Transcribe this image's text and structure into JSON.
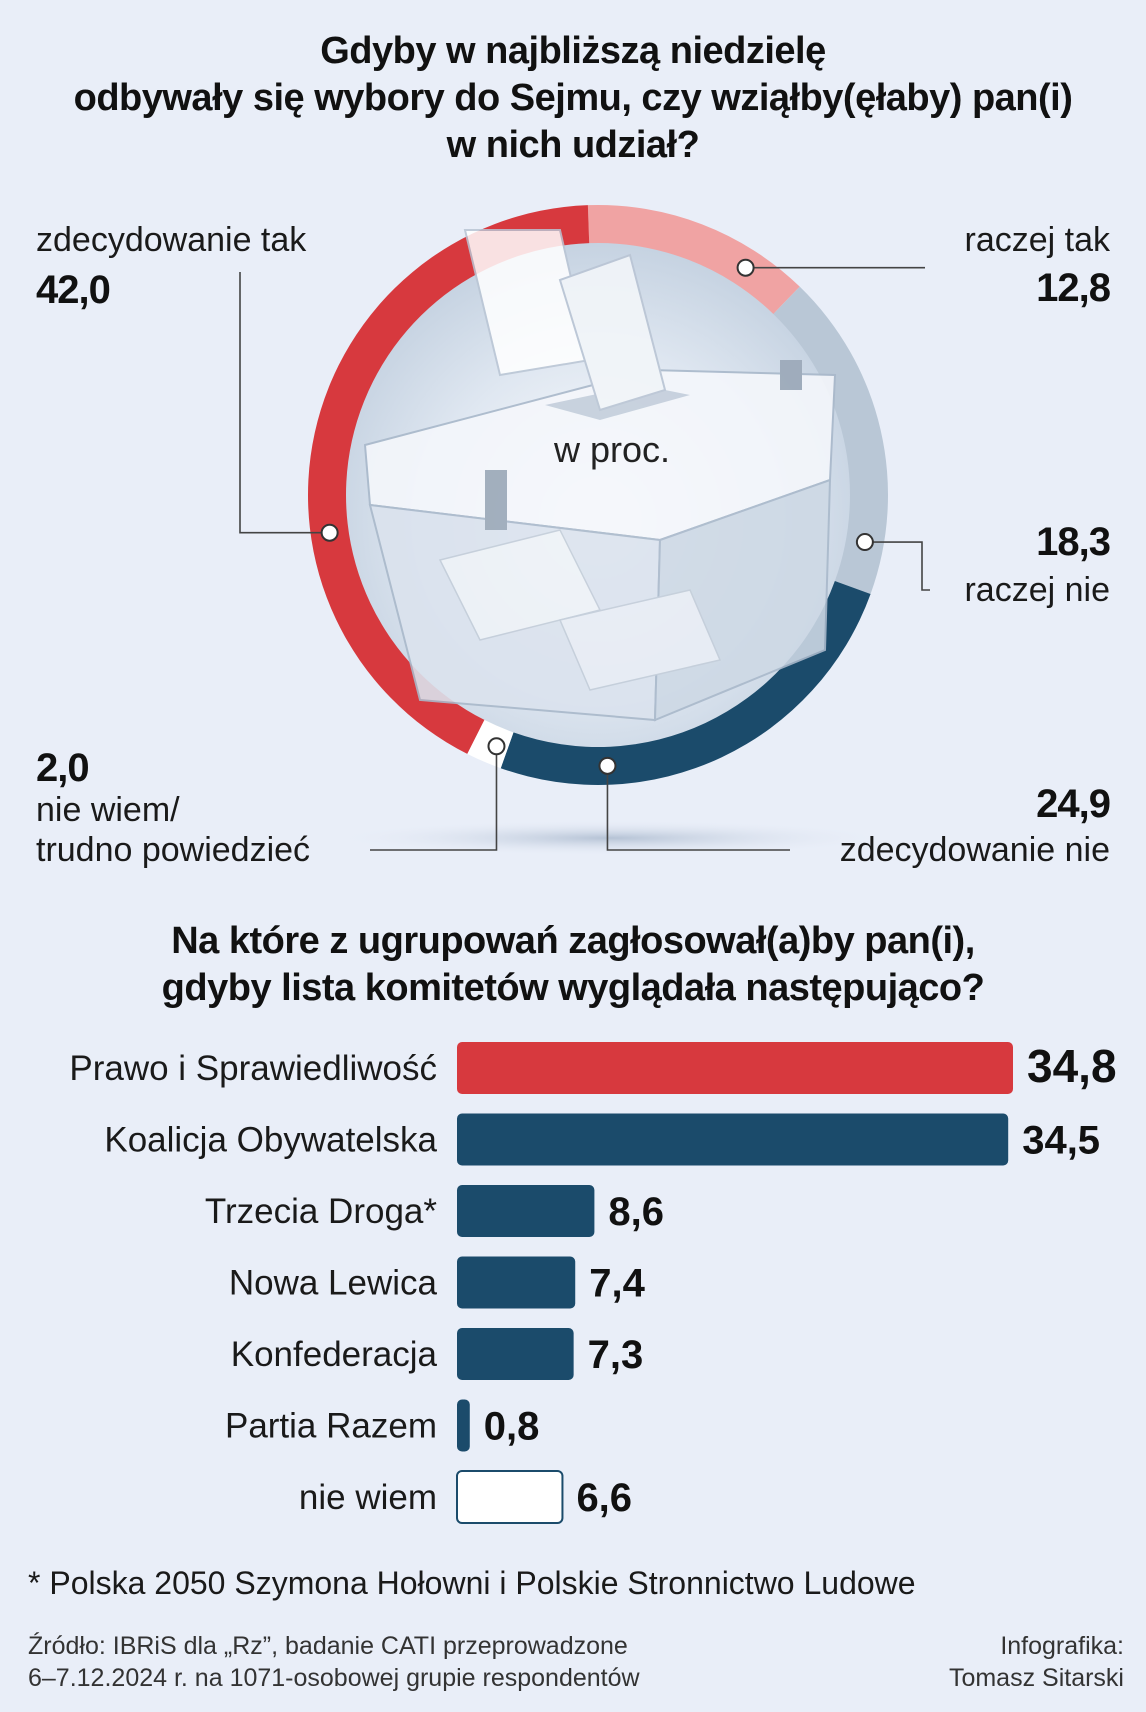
{
  "title1": {
    "line1": "Gdyby w najbliższą niedzielę",
    "line2": "odbywały się wybory do Sejmu, czy wziąłby(ęłaby) pan(i)",
    "line3": "w nich udział?"
  },
  "unit_label": "w proc.",
  "title2": {
    "line1": "Na które z ugrupowań zagłosował(a)by pan(i),",
    "line2": "gdyby lista komitetów wyglądała następująco?"
  },
  "footnote": "* Polska 2050 Szymona Hołowni i Polskie Stronnictwo Ludowe",
  "source": {
    "line1": "Źródło: IBRiS dla „Rz”, badanie CATI przeprowadzone",
    "line2": "6–7.12.2024 r. na 1071-osobowej grupie respondentów"
  },
  "credit": {
    "line1": "Infografika:",
    "line2": "Tomasz Sitarski"
  },
  "colors": {
    "red": "#d7393e",
    "light_red": "#f0a3a3",
    "light_blue": "#b9c7d6",
    "navy": "#1b4b6b",
    "white": "#ffffff",
    "background": "#e9eef8"
  },
  "chart_data": [
    {
      "type": "pie",
      "title": "Gdyby w najbliższą niedzielę odbywały się wybory do Sejmu, czy wziąłby(ęłaby) pan(i) w nich udział?",
      "unit": "w proc.",
      "slices": [
        {
          "label": "raczej tak",
          "value": 12.8,
          "display": "12,8",
          "color": "#f0a3a3"
        },
        {
          "label": "raczej nie",
          "value": 18.3,
          "display": "18,3",
          "color": "#b9c7d6"
        },
        {
          "label": "zdecydowanie nie",
          "value": 24.9,
          "display": "24,9",
          "color": "#1b4b6b"
        },
        {
          "label": "nie wiem/ trudno powiedzieć",
          "label_line1": "nie wiem/",
          "label_line2": "trudno powiedzieć",
          "value": 2.0,
          "display": "2,0",
          "color": "#ffffff"
        },
        {
          "label": "zdecydowanie tak",
          "value": 42.0,
          "display": "42,0",
          "color": "#d7393e"
        }
      ]
    },
    {
      "type": "bar",
      "orientation": "horizontal",
      "title": "Na które z ugrupowań zagłosował(a)by pan(i), gdyby lista komitetów wyglądała następująco?",
      "categories": [
        "Prawo i Sprawiedliwość",
        "Koalicja Obywatelska",
        "Trzecia Droga*",
        "Nowa Lewica",
        "Konfederacja",
        "Partia Razem",
        "nie wiem"
      ],
      "values": [
        34.8,
        34.5,
        8.6,
        7.4,
        7.3,
        0.8,
        6.6
      ],
      "display": [
        "34,8",
        "34,5",
        "8,6",
        "7,4",
        "7,3",
        "0,8",
        "6,6"
      ],
      "colors": [
        "#d7393e",
        "#1b4b6b",
        "#1b4b6b",
        "#1b4b6b",
        "#1b4b6b",
        "#1b4b6b",
        "#ffffff"
      ],
      "xlim": [
        0,
        34.8
      ]
    }
  ]
}
